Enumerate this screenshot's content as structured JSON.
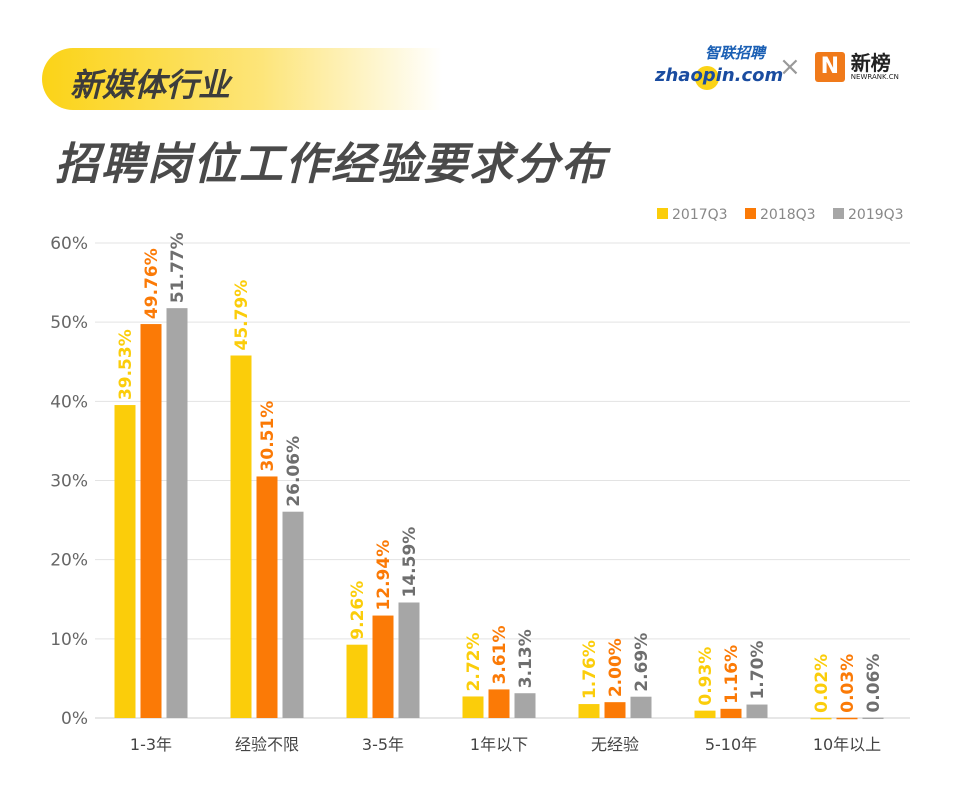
{
  "header": {
    "tag": "新媒体行业",
    "title": "招聘岗位工作经验要求分布",
    "logos": {
      "zhaopin_cn": "智联招聘",
      "zhaopin_en": "zhaopin.com",
      "separator": "×",
      "newrank_cn": "新榜",
      "newrank_en": "NEWRANK.CN"
    }
  },
  "chart_data": {
    "type": "bar",
    "categories": [
      "1-3年",
      "经验不限",
      "3-5年",
      "1年以下",
      "无经验",
      "5-10年",
      "10年以上"
    ],
    "series": [
      {
        "name": "2017Q3",
        "color": "#fbcd0a",
        "values": [
          39.53,
          45.79,
          9.26,
          2.72,
          1.76,
          0.93,
          0.02
        ]
      },
      {
        "name": "2018Q3",
        "color": "#fb7a06",
        "values": [
          49.76,
          30.51,
          12.94,
          3.61,
          2.0,
          1.16,
          0.03
        ]
      },
      {
        "name": "2019Q3",
        "color": "#a6a6a6",
        "values": [
          51.77,
          26.06,
          14.59,
          3.13,
          2.69,
          1.7,
          0.06
        ]
      }
    ],
    "label_colors": [
      "#fbcd0a",
      "#fb7a06",
      "#6e6e6e"
    ],
    "yticks": [
      "0%",
      "10%",
      "20%",
      "30%",
      "40%",
      "50%",
      "60%"
    ],
    "ylim": [
      0,
      60
    ],
    "grid": true,
    "legend": "top-right"
  }
}
